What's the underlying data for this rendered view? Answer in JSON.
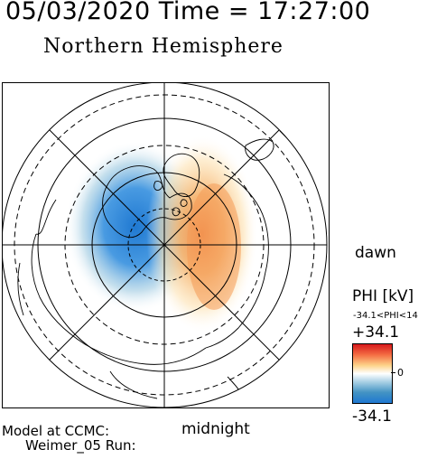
{
  "header": {
    "datetime": "05/03/2020 Time = 17:27:00",
    "hemisphere": "Northern Hemisphere"
  },
  "labels": {
    "dawn": "dawn",
    "midnight": "midnight",
    "model_line1": "Model at CCMC:",
    "model_line2": "Weimer_05 Run:"
  },
  "colorbar": {
    "title": "PHI [kV]",
    "range_text": "-34.1<PHI<14",
    "max_label": "+34.1",
    "zero_label": "0",
    "min_label": "-34.1",
    "colors": [
      "#d7191c",
      "#f46d43",
      "#fdd38a",
      "#ffffff",
      "#9ecae1",
      "#4393c3",
      "#1f78d1"
    ]
  },
  "map": {
    "projection": "polar stereographic, north pole at center",
    "negative_cell_color": "#1f78d1",
    "positive_cell_color": "#f4a45a"
  }
}
